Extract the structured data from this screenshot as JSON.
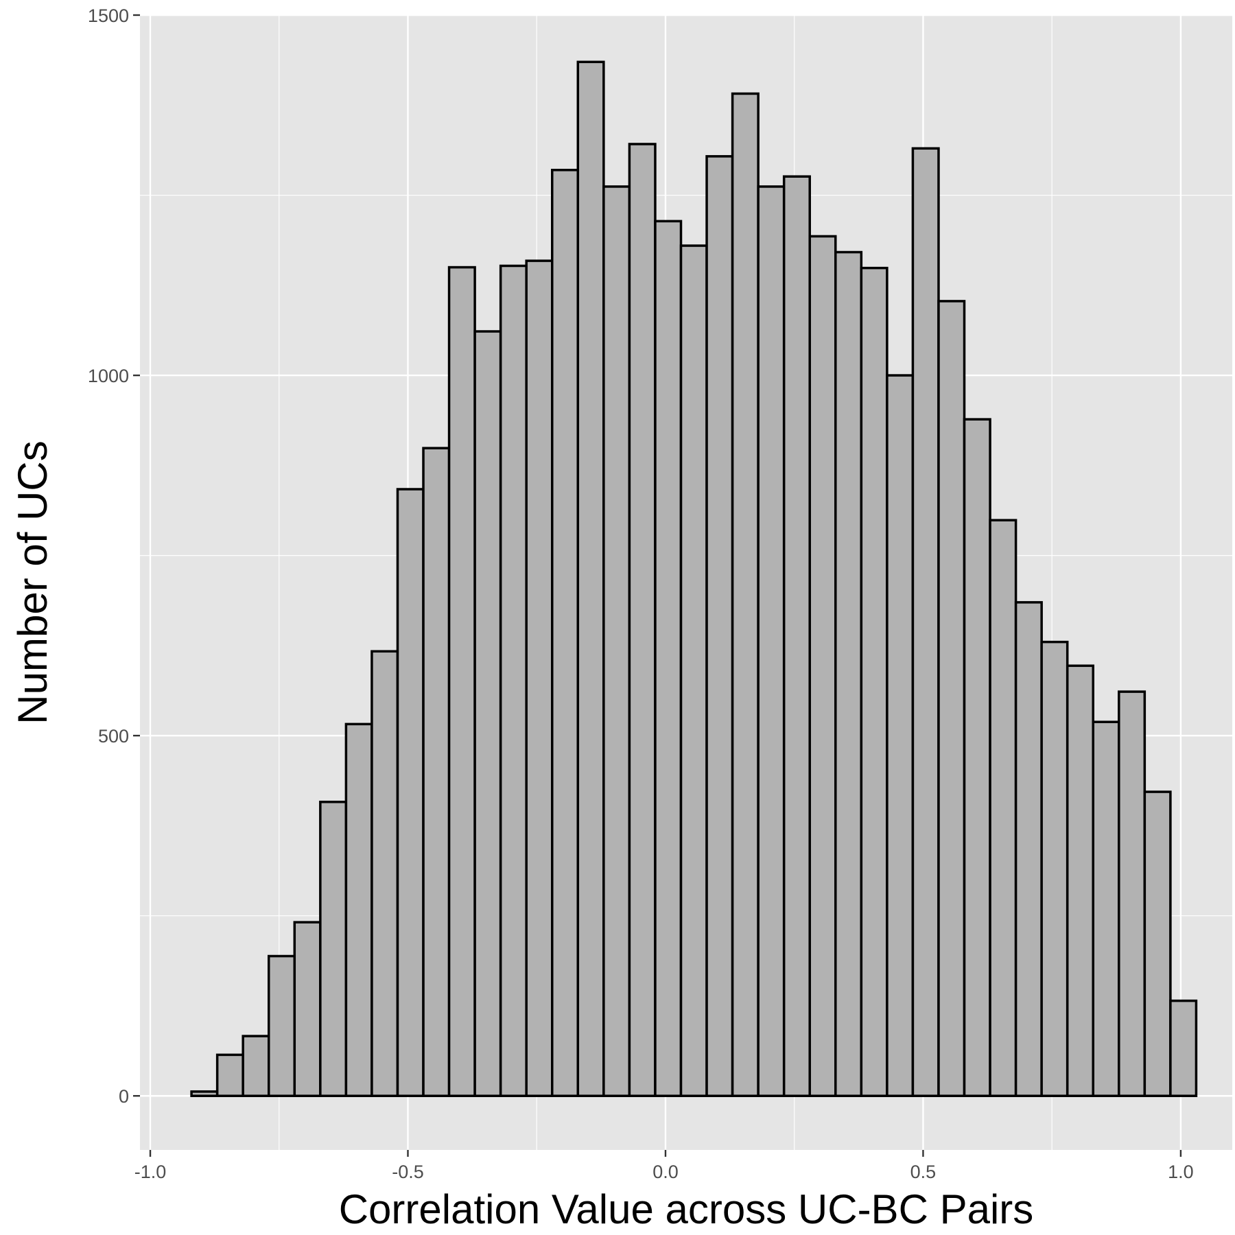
{
  "chart_data": {
    "type": "bar",
    "title": "",
    "xlabel": "Correlation Value across UC-BC Pairs",
    "ylabel": "Number of UCs",
    "xlim": [
      -1.02,
      1.1
    ],
    "ylim": [
      -75,
      1500
    ],
    "x_ticks": [
      -1.0,
      -0.5,
      0.0,
      0.5,
      1.0
    ],
    "x_tick_labels": [
      "-1.0",
      "-0.5",
      "0.0",
      "0.5",
      "1.0"
    ],
    "y_ticks": [
      0,
      500,
      1000,
      1500
    ],
    "y_tick_labels": [
      "0",
      "500",
      "1000",
      "1500"
    ],
    "grid": true,
    "legend": "none",
    "bin_width": 0.05,
    "bin_start": -0.92,
    "bins": [
      {
        "x0": -0.92,
        "x1": -0.87,
        "count": 6
      },
      {
        "x0": -0.87,
        "x1": -0.82,
        "count": 57
      },
      {
        "x0": -0.82,
        "x1": -0.77,
        "count": 83
      },
      {
        "x0": -0.77,
        "x1": -0.72,
        "count": 194
      },
      {
        "x0": -0.72,
        "x1": -0.67,
        "count": 241
      },
      {
        "x0": -0.67,
        "x1": -0.62,
        "count": 408
      },
      {
        "x0": -0.62,
        "x1": -0.57,
        "count": 516
      },
      {
        "x0": -0.57,
        "x1": -0.52,
        "count": 617
      },
      {
        "x0": -0.52,
        "x1": -0.47,
        "count": 842
      },
      {
        "x0": -0.47,
        "x1": -0.42,
        "count": 899
      },
      {
        "x0": -0.42,
        "x1": -0.37,
        "count": 1150
      },
      {
        "x0": -0.37,
        "x1": -0.32,
        "count": 1061
      },
      {
        "x0": -0.32,
        "x1": -0.27,
        "count": 1152
      },
      {
        "x0": -0.27,
        "x1": -0.22,
        "count": 1159
      },
      {
        "x0": -0.22,
        "x1": -0.17,
        "count": 1285
      },
      {
        "x0": -0.17,
        "x1": -0.12,
        "count": 1435
      },
      {
        "x0": -0.12,
        "x1": -0.07,
        "count": 1262
      },
      {
        "x0": -0.07,
        "x1": -0.02,
        "count": 1321
      },
      {
        "x0": -0.02,
        "x1": 0.03,
        "count": 1214
      },
      {
        "x0": 0.03,
        "x1": 0.08,
        "count": 1180
      },
      {
        "x0": 0.08,
        "x1": 0.13,
        "count": 1304
      },
      {
        "x0": 0.13,
        "x1": 0.18,
        "count": 1391
      },
      {
        "x0": 0.18,
        "x1": 0.23,
        "count": 1262
      },
      {
        "x0": 0.23,
        "x1": 0.28,
        "count": 1276
      },
      {
        "x0": 0.28,
        "x1": 0.33,
        "count": 1193
      },
      {
        "x0": 0.33,
        "x1": 0.38,
        "count": 1171
      },
      {
        "x0": 0.38,
        "x1": 0.43,
        "count": 1149
      },
      {
        "x0": 0.43,
        "x1": 0.48,
        "count": 1000
      },
      {
        "x0": 0.48,
        "x1": 0.53,
        "count": 1315
      },
      {
        "x0": 0.53,
        "x1": 0.58,
        "count": 1103
      },
      {
        "x0": 0.58,
        "x1": 0.63,
        "count": 939
      },
      {
        "x0": 0.63,
        "x1": 0.68,
        "count": 799
      },
      {
        "x0": 0.68,
        "x1": 0.73,
        "count": 685
      },
      {
        "x0": 0.73,
        "x1": 0.78,
        "count": 630
      },
      {
        "x0": 0.78,
        "x1": 0.83,
        "count": 597
      },
      {
        "x0": 0.83,
        "x1": 0.88,
        "count": 519
      },
      {
        "x0": 0.88,
        "x1": 0.93,
        "count": 561
      },
      {
        "x0": 0.93,
        "x1": 0.98,
        "count": 422
      },
      {
        "x0": 0.98,
        "x1": 1.03,
        "count": 132
      }
    ],
    "colors": {
      "panel": "#e5e5e5",
      "grid": "#ffffff",
      "bar_fill": "#b2b2b2",
      "bar_stroke": "#000000",
      "tick_text": "#4d4d4d",
      "tick_mark": "#333333"
    }
  }
}
